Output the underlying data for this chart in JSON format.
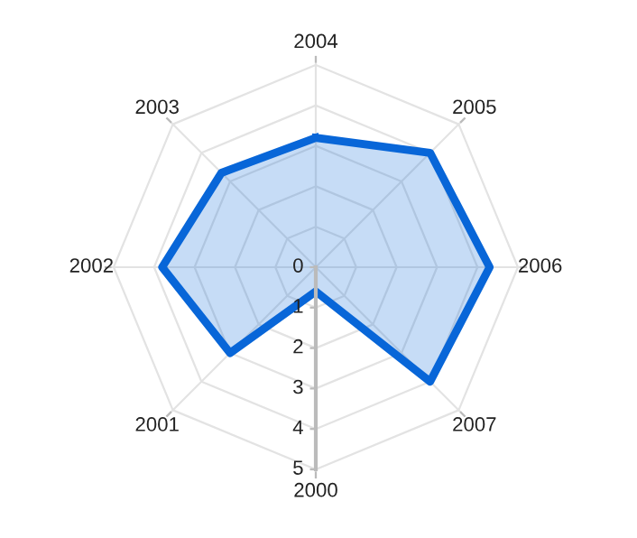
{
  "chart_data": {
    "type": "radar",
    "categories": [
      "2004",
      "2005",
      "2006",
      "2007",
      "2000",
      "2001",
      "2002",
      "2003"
    ],
    "series": [
      {
        "color": "#0866d8",
        "values": [
          3.2,
          4.0,
          4.3,
          4.0,
          0.6,
          3.0,
          3.8,
          3.3
        ]
      }
    ],
    "ylim": [
      0,
      5
    ],
    "yticks": [
      0,
      1,
      2,
      3,
      4,
      5
    ],
    "grid": true,
    "marker": "none",
    "line_style": "solid"
  }
}
